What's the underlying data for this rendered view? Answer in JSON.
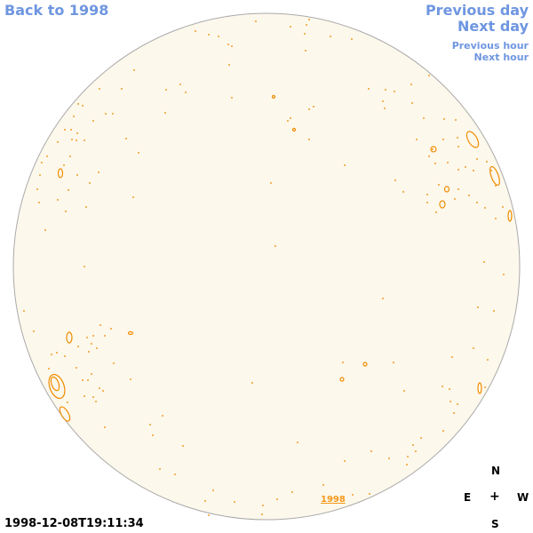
{
  "nav": {
    "back": "Back to 1998",
    "previous_day": "Previous day",
    "next_day": "Next day",
    "previous_hour": "Previous hour",
    "next_hour": "Next hour"
  },
  "year_link": "1998",
  "timestamp": "1998-12-08T19:11:34",
  "compass": {
    "n": "N",
    "e": "E",
    "center": "+",
    "w": "W",
    "s": "S"
  },
  "colors": {
    "disk_fill": "#fdf8ec",
    "disk_outline": "#aaaaaa",
    "contour": "#f08c00",
    "link": "#6f96e0"
  }
}
